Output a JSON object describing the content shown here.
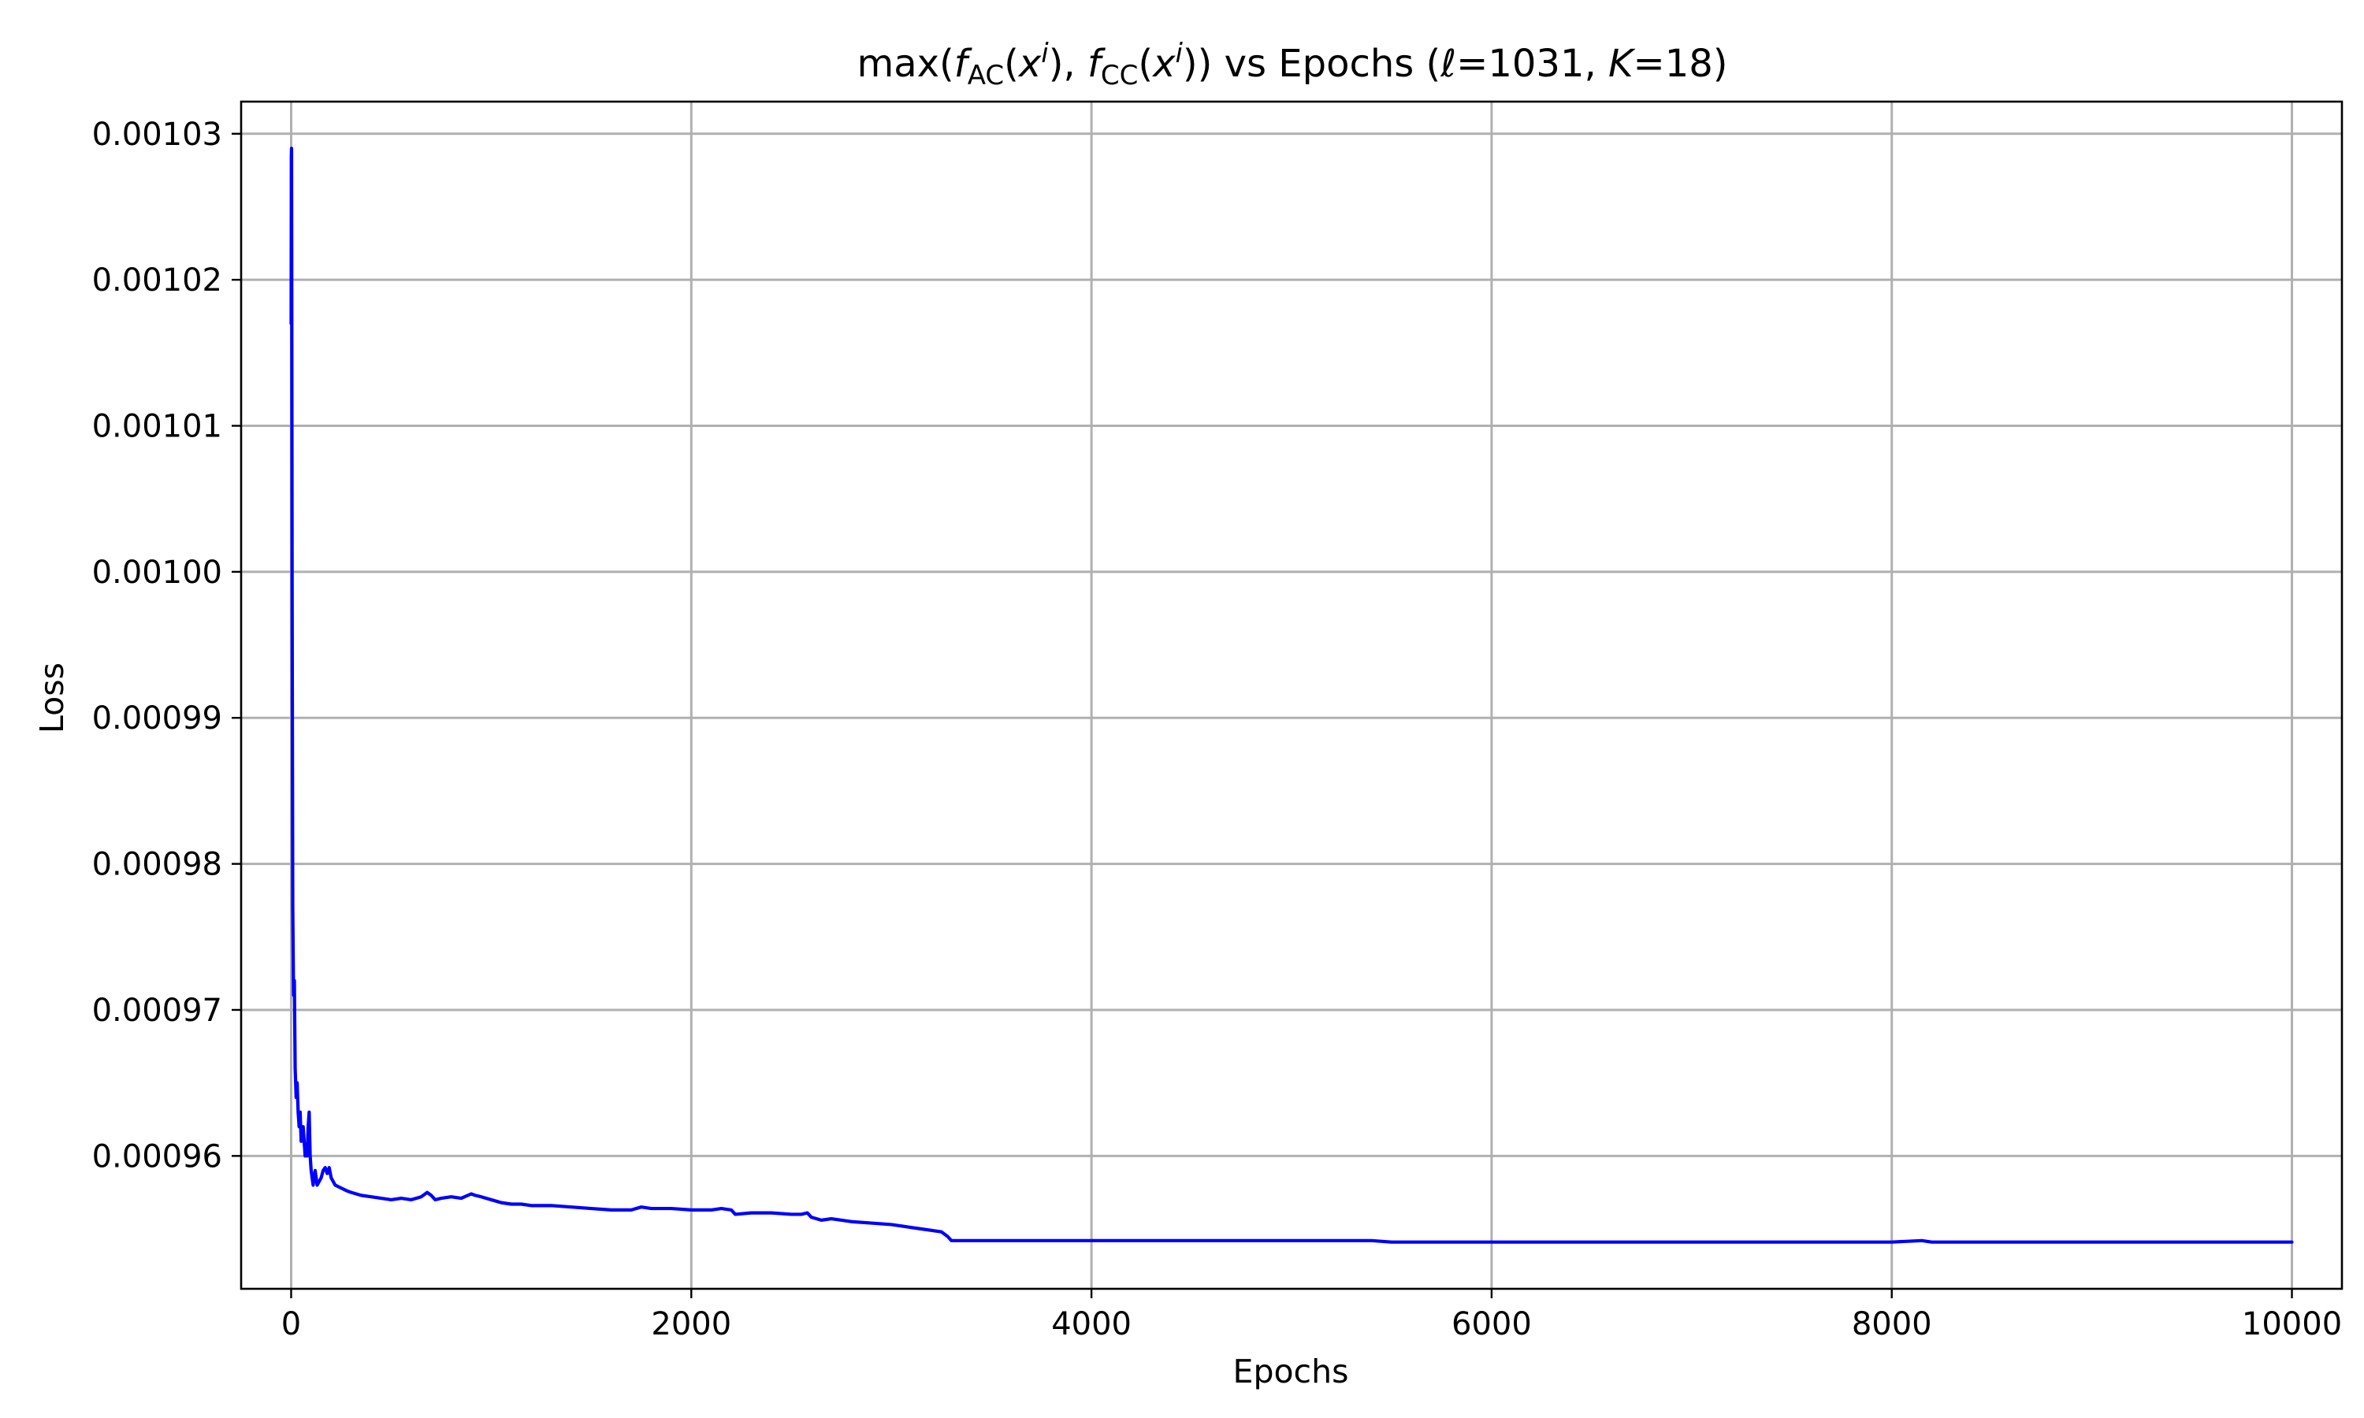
{
  "chart_data": {
    "type": "line",
    "title": {
      "lead": "max(",
      "f1": "f",
      "sub1": "AC",
      "paren1": "(",
      "x1": "x",
      "sup1": "i",
      "mid": "), ",
      "f2": "f",
      "sub2": "CC",
      "paren2": "(",
      "x2": "x",
      "sup2": "i",
      "tail1": ")) vs Epochs (",
      "ell": "ℓ",
      "eq1": "=1031, ",
      "k": "K",
      "eq2": "=18)"
    },
    "xlabel": "Epochs",
    "ylabel": "Loss",
    "xlim": [
      -250,
      10250
    ],
    "ylim": [
      0.0009509,
      0.0010322
    ],
    "grid": true,
    "legend": "none",
    "color": "#0000ff",
    "x_ticks": [
      {
        "value": 0,
        "label": "0"
      },
      {
        "value": 2000,
        "label": "2000"
      },
      {
        "value": 4000,
        "label": "4000"
      },
      {
        "value": 6000,
        "label": "6000"
      },
      {
        "value": 8000,
        "label": "8000"
      },
      {
        "value": 10000,
        "label": "10000"
      }
    ],
    "y_ticks": [
      {
        "value": 0.00096,
        "label": "0.00096"
      },
      {
        "value": 0.00097,
        "label": "0.00097"
      },
      {
        "value": 0.00098,
        "label": "0.00098"
      },
      {
        "value": 0.00099,
        "label": "0.00099"
      },
      {
        "value": 0.001,
        "label": "0.00100"
      },
      {
        "value": 0.00101,
        "label": "0.00101"
      },
      {
        "value": 0.00102,
        "label": "0.00102"
      },
      {
        "value": 0.00103,
        "label": "0.00103"
      }
    ],
    "series": [
      {
        "x": [
          0,
          1,
          2,
          3,
          5,
          8,
          12,
          16,
          20,
          25,
          30,
          35,
          40,
          45,
          50,
          60,
          70,
          80,
          85,
          90,
          95,
          100,
          110,
          120,
          130,
          150,
          160,
          170,
          180,
          190,
          200,
          220,
          250,
          280,
          300,
          350,
          400,
          450,
          500,
          550,
          600,
          650,
          680,
          700,
          720,
          750,
          800,
          850,
          900,
          920,
          950,
          1000,
          1050,
          1100,
          1150,
          1200,
          1300,
          1400,
          1500,
          1600,
          1700,
          1750,
          1800,
          1900,
          2000,
          2100,
          2150,
          2200,
          2220,
          2300,
          2400,
          2500,
          2550,
          2580,
          2600,
          2650,
          2700,
          2800,
          2900,
          3000,
          3100,
          3150,
          3200,
          3250,
          3280,
          3300,
          3500,
          4000,
          4300,
          4500,
          5000,
          5400,
          5500,
          6000,
          7000,
          8000,
          8150,
          8200,
          9000,
          10000
        ],
        "y": [
          0.001017,
          0.0010285,
          0.001029,
          0.00102,
          0.000998,
          0.000977,
          0.000971,
          0.000972,
          0.000966,
          0.000964,
          0.000965,
          0.000963,
          0.000962,
          0.000963,
          0.000961,
          0.000962,
          0.00096,
          0.00096,
          0.000962,
          0.000963,
          0.00096,
          0.000959,
          0.000958,
          0.000959,
          0.000958,
          0.0009585,
          0.000959,
          0.0009592,
          0.0009588,
          0.0009592,
          0.0009585,
          0.000958,
          0.0009578,
          0.0009576,
          0.0009575,
          0.0009573,
          0.0009572,
          0.0009571,
          0.000957,
          0.0009571,
          0.000957,
          0.0009572,
          0.0009575,
          0.0009573,
          0.000957,
          0.0009571,
          0.0009572,
          0.0009571,
          0.0009574,
          0.0009573,
          0.0009572,
          0.000957,
          0.0009568,
          0.0009567,
          0.0009567,
          0.0009566,
          0.0009566,
          0.0009565,
          0.0009564,
          0.0009563,
          0.0009563,
          0.0009565,
          0.0009564,
          0.0009564,
          0.0009563,
          0.0009563,
          0.0009564,
          0.0009563,
          0.000956,
          0.0009561,
          0.0009561,
          0.000956,
          0.000956,
          0.0009561,
          0.0009558,
          0.0009556,
          0.0009557,
          0.0009555,
          0.0009554,
          0.0009553,
          0.0009551,
          0.000955,
          0.0009549,
          0.0009548,
          0.0009545,
          0.0009542,
          0.0009542,
          0.0009542,
          0.0009542,
          0.0009542,
          0.0009542,
          0.0009542,
          0.0009541,
          0.0009541,
          0.0009541,
          0.0009541,
          0.0009542,
          0.0009541,
          0.0009541,
          0.0009541
        ]
      }
    ]
  }
}
